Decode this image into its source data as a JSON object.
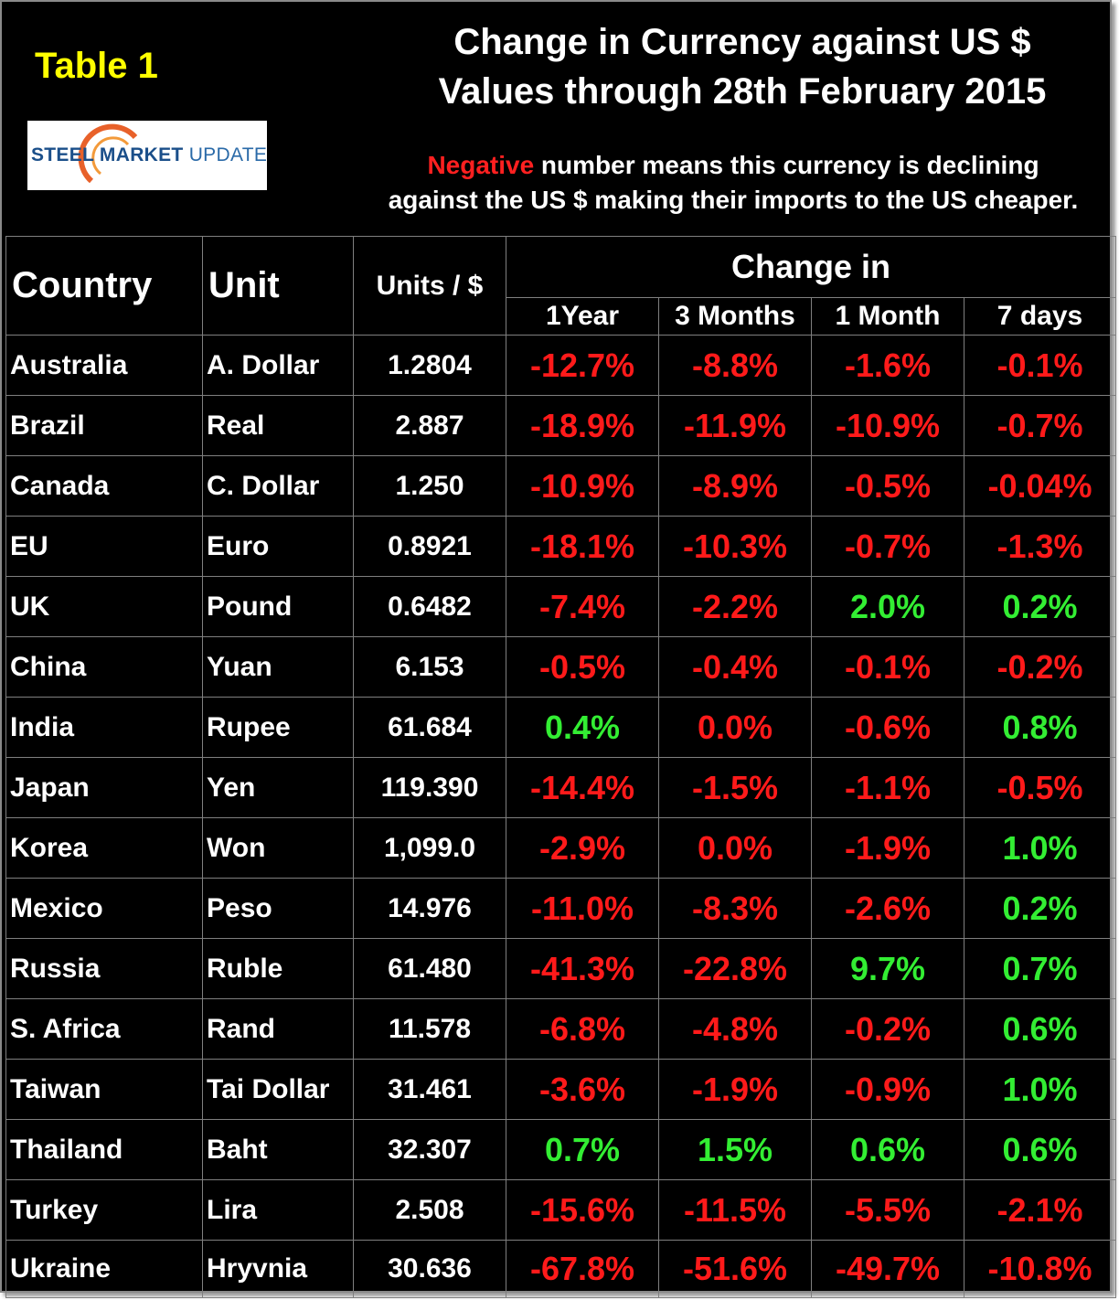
{
  "header": {
    "table_label": "Table 1",
    "title_line1": "Change in Currency against US $",
    "title_line2": "Values through 28th February 2015",
    "note_negative_word": "Negative",
    "note_rest_line1": " number means this currency is declining",
    "note_line2": "against the US $ making their imports to the US cheaper.",
    "logo": {
      "text_bold": "STEEL MARKET",
      "text_light": "UPDATE"
    }
  },
  "colors": {
    "negative": "#ff1a1a",
    "positive": "#33ee33",
    "title": "#ffffff",
    "label": "#ffff00",
    "background": "#000000"
  },
  "chart_data": {
    "type": "table",
    "columns": {
      "country": "Country",
      "unit": "Unit",
      "units_per_dollar": "Units / $",
      "change_group": "Change in",
      "periods": [
        "1Year",
        "3 Months",
        "1 Month",
        "7 days"
      ]
    },
    "rows": [
      {
        "country": "Australia",
        "unit": "A. Dollar",
        "units": "1.2804",
        "changes": [
          "-12.7%",
          "-8.8%",
          "-1.6%",
          "-0.1%"
        ]
      },
      {
        "country": "Brazil",
        "unit": "Real",
        "units": "2.887",
        "changes": [
          "-18.9%",
          "-11.9%",
          "-10.9%",
          "-0.7%"
        ]
      },
      {
        "country": "Canada",
        "unit": "C. Dollar",
        "units": "1.250",
        "changes": [
          "-10.9%",
          "-8.9%",
          "-0.5%",
          "-0.04%"
        ]
      },
      {
        "country": "EU",
        "unit": "Euro",
        "units": "0.8921",
        "changes": [
          "-18.1%",
          "-10.3%",
          "-0.7%",
          "-1.3%"
        ]
      },
      {
        "country": "UK",
        "unit": "Pound",
        "units": "0.6482",
        "changes": [
          "-7.4%",
          "-2.2%",
          "2.0%",
          "0.2%"
        ]
      },
      {
        "country": "China",
        "unit": "Yuan",
        "units": "6.153",
        "changes": [
          "-0.5%",
          "-0.4%",
          "-0.1%",
          "-0.2%"
        ]
      },
      {
        "country": "India",
        "unit": "Rupee",
        "units": "61.684",
        "changes": [
          "0.4%",
          "0.0%",
          "-0.6%",
          "0.8%"
        ]
      },
      {
        "country": "Japan",
        "unit": "Yen",
        "units": "119.390",
        "changes": [
          "-14.4%",
          "-1.5%",
          "-1.1%",
          "-0.5%"
        ]
      },
      {
        "country": "Korea",
        "unit": "Won",
        "units": "1,099.0",
        "changes": [
          "-2.9%",
          "0.0%",
          "-1.9%",
          "1.0%"
        ]
      },
      {
        "country": "Mexico",
        "unit": "Peso",
        "units": "14.976",
        "changes": [
          "-11.0%",
          "-8.3%",
          "-2.6%",
          "0.2%"
        ]
      },
      {
        "country": "Russia",
        "unit": "Ruble",
        "units": "61.480",
        "changes": [
          "-41.3%",
          "-22.8%",
          "9.7%",
          "0.7%"
        ]
      },
      {
        "country": "S. Africa",
        "unit": "Rand",
        "units": "11.578",
        "changes": [
          "-6.8%",
          "-4.8%",
          "-0.2%",
          "0.6%"
        ]
      },
      {
        "country": "Taiwan",
        "unit": "Tai Dollar",
        "units": "31.461",
        "changes": [
          "-3.6%",
          "-1.9%",
          "-0.9%",
          "1.0%"
        ]
      },
      {
        "country": "Thailand",
        "unit": "Baht",
        "units": "32.307",
        "changes": [
          "0.7%",
          "1.5%",
          "0.6%",
          "0.6%"
        ]
      },
      {
        "country": "Turkey",
        "unit": "Lira",
        "units": "2.508",
        "changes": [
          "-15.6%",
          "-11.5%",
          "-5.5%",
          "-2.1%"
        ]
      },
      {
        "country": "Ukraine",
        "unit": "Hryvnia",
        "units": "30.636",
        "changes": [
          "-67.8%",
          "-51.6%",
          "-49.7%",
          "-10.8%"
        ]
      }
    ],
    "value_colors": {
      "red": [
        [
          0,
          1,
          2,
          3
        ],
        [
          0,
          1,
          2,
          3
        ],
        [
          0,
          1,
          2,
          3
        ],
        [
          0,
          1,
          2,
          3
        ],
        [
          0,
          1
        ],
        [
          0,
          1,
          2,
          3
        ],
        [
          1,
          2
        ],
        [
          0,
          1,
          2,
          3
        ],
        [
          0,
          1,
          2
        ],
        [
          0,
          1,
          2
        ],
        [
          0,
          1
        ],
        [
          0,
          1,
          2
        ],
        [
          0,
          1,
          2
        ],
        [],
        [
          0,
          1,
          2,
          3
        ],
        [
          0,
          1,
          2,
          3
        ]
      ],
      "green": [
        [],
        [],
        [],
        [],
        [
          2,
          3
        ],
        [],
        [
          0,
          3
        ],
        [],
        [
          3
        ],
        [
          3
        ],
        [
          2,
          3
        ],
        [
          3
        ],
        [
          3
        ],
        [
          0,
          1,
          2,
          3
        ],
        [],
        []
      ]
    }
  }
}
